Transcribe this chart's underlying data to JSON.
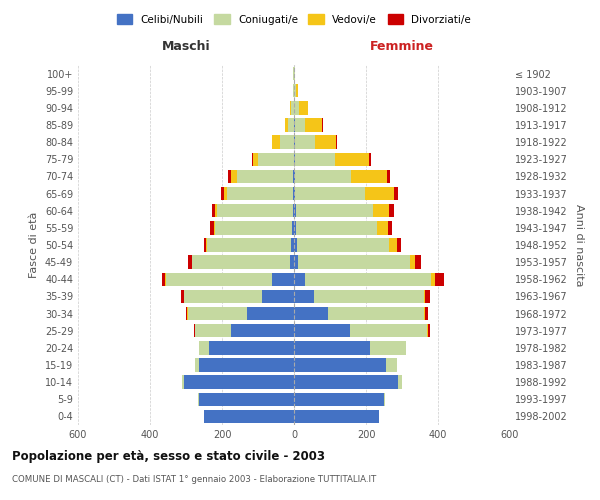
{
  "age_groups": [
    "0-4",
    "5-9",
    "10-14",
    "15-19",
    "20-24",
    "25-29",
    "30-34",
    "35-39",
    "40-44",
    "45-49",
    "50-54",
    "55-59",
    "60-64",
    "65-69",
    "70-74",
    "75-79",
    "80-84",
    "85-89",
    "90-94",
    "95-99",
    "100+"
  ],
  "birth_years": [
    "1998-2002",
    "1993-1997",
    "1988-1992",
    "1983-1987",
    "1978-1982",
    "1973-1977",
    "1968-1972",
    "1963-1967",
    "1958-1962",
    "1953-1957",
    "1948-1952",
    "1943-1947",
    "1938-1942",
    "1933-1937",
    "1928-1932",
    "1923-1927",
    "1918-1922",
    "1913-1917",
    "1908-1912",
    "1903-1907",
    "≤ 1902"
  ],
  "maschi": {
    "celibe": [
      250,
      265,
      305,
      265,
      235,
      175,
      130,
      90,
      60,
      12,
      7,
      5,
      4,
      2,
      2,
      0,
      0,
      0,
      0,
      0,
      0
    ],
    "coniugato": [
      0,
      2,
      5,
      10,
      30,
      100,
      165,
      215,
      295,
      270,
      235,
      215,
      210,
      185,
      155,
      100,
      40,
      18,
      8,
      3,
      2
    ],
    "vedovo": [
      0,
      0,
      0,
      0,
      0,
      0,
      1,
      1,
      2,
      2,
      2,
      3,
      5,
      8,
      18,
      15,
      20,
      8,
      2,
      0,
      0
    ],
    "divorziato": [
      0,
      0,
      0,
      0,
      0,
      3,
      5,
      8,
      10,
      10,
      7,
      10,
      10,
      8,
      8,
      2,
      2,
      0,
      0,
      0,
      0
    ]
  },
  "femmine": {
    "nubile": [
      235,
      250,
      290,
      255,
      210,
      155,
      95,
      55,
      30,
      12,
      8,
      5,
      5,
      3,
      3,
      3,
      2,
      2,
      0,
      0,
      0
    ],
    "coniugata": [
      2,
      2,
      10,
      30,
      100,
      215,
      265,
      305,
      350,
      310,
      255,
      225,
      215,
      195,
      155,
      110,
      55,
      28,
      15,
      5,
      2
    ],
    "vedova": [
      0,
      0,
      0,
      0,
      0,
      2,
      3,
      5,
      12,
      15,
      22,
      30,
      45,
      80,
      100,
      95,
      60,
      48,
      25,
      5,
      2
    ],
    "divorziata": [
      0,
      0,
      0,
      0,
      2,
      5,
      8,
      12,
      25,
      15,
      12,
      12,
      12,
      10,
      8,
      5,
      2,
      2,
      0,
      0,
      0
    ]
  },
  "colors": {
    "celibe": "#4472c4",
    "coniugato": "#c5d9a0",
    "vedovo": "#f5c518",
    "divorziato": "#cc0000"
  },
  "xlim": 600,
  "title": "Popolazione per età, sesso e stato civile - 2003",
  "subtitle": "COMUNE DI MASCALI (CT) - Dati ISTAT 1° gennaio 2003 - Elaborazione TUTTITALIA.IT",
  "ylabel_left": "Fasce di età",
  "ylabel_right": "Anni di nascita",
  "xlabel_left": "Maschi",
  "xlabel_right": "Femmine",
  "background_color": "#ffffff",
  "grid_color": "#cccccc"
}
